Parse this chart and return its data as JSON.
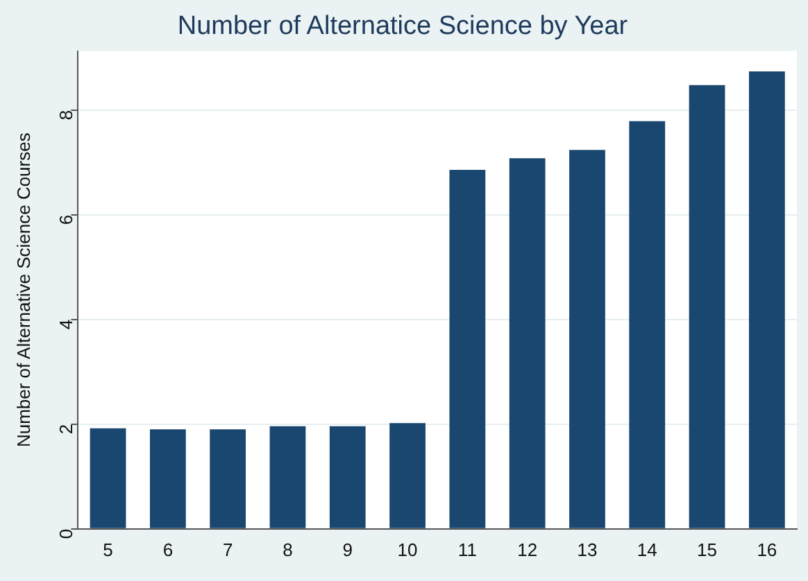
{
  "chart_data": {
    "type": "bar",
    "title": "Number of Alternatice Science by Year",
    "ylabel": "Number of Alternative Science Courses",
    "categories": [
      "5",
      "6",
      "7",
      "8",
      "9",
      "10",
      "11",
      "12",
      "13",
      "14",
      "15",
      "16"
    ],
    "values": [
      1.92,
      1.9,
      1.9,
      1.96,
      1.96,
      2.02,
      6.86,
      7.08,
      7.24,
      7.79,
      8.48,
      8.74
    ],
    "color": "#1a476f",
    "ylim": [
      0,
      9.13
    ],
    "yticks": [
      0,
      2,
      4,
      6,
      8
    ],
    "grid": "y"
  }
}
